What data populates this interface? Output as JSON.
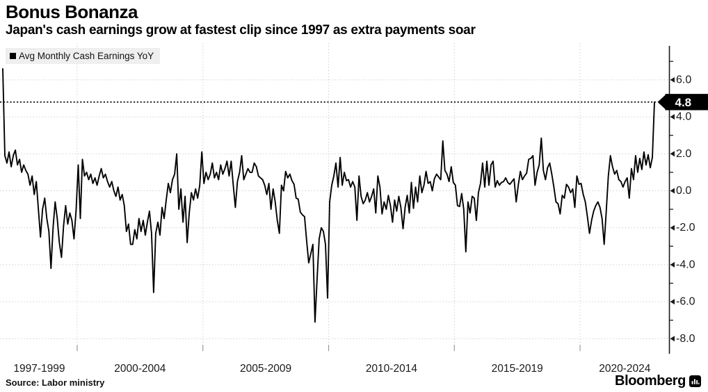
{
  "header": {
    "title": "Bonus Bonanza",
    "subtitle": "Japan's cash earnings grow at fastest clip since 1997 as extra payments soar"
  },
  "legend": {
    "label": "Avg Monthly Cash Earnings YoY"
  },
  "footer": {
    "source": "Source: Labor ministry",
    "brand": "Bloomberg"
  },
  "chart_data": {
    "type": "line",
    "title": "Bonus Bonanza",
    "subtitle": "Japan's cash earnings grow at fastest clip since 1997 as extra payments soar",
    "legend_entries": [
      "Avg Monthly Cash Earnings YoY"
    ],
    "legend_position": "top-left",
    "grid": "dotted",
    "x_start": "1997-01",
    "x_end": "2022-12",
    "frequency": "monthly",
    "x_tick_labels": [
      "1997-1999",
      "2000-2004",
      "2005-2009",
      "2010-2014",
      "2015-2019",
      "2020-2024"
    ],
    "x_gridline_years": [
      2000,
      2005,
      2010,
      2015,
      2020
    ],
    "y_ticks_major": [
      6,
      4,
      2,
      0,
      -2,
      -4,
      -6,
      -8
    ],
    "y_tick_labels": [
      "6.0",
      "4.0",
      "2.0",
      "0.0",
      "-2.0",
      "-4.0",
      "-6.0",
      "-8.0"
    ],
    "y_ticks_minor": [
      7,
      5,
      3,
      1,
      -1,
      -3,
      -5,
      -7
    ],
    "ylim": [
      -8.9,
      7.8
    ],
    "annotation": {
      "value": 4.8,
      "label": "4.8",
      "style": "dotted-threshold-line-with-axis-callout"
    },
    "colors": {
      "line": "#000000",
      "grid": "#cfcfcf",
      "threshold": "#000000",
      "callout_bg": "#000000",
      "callout_text": "#ffffff",
      "legend_bg": "#efefef",
      "axis": "#1a1a1a"
    },
    "series": [
      {
        "name": "Avg Monthly Cash Earnings YoY",
        "unit": "%",
        "values": [
          6.6,
          1.9,
          1.5,
          2.1,
          1.3,
          1.9,
          2.2,
          1.4,
          1.7,
          1.0,
          1.4,
          1.1,
          0.9,
          0.3,
          0.8,
          -0.2,
          0.5,
          -1.0,
          -2.5,
          -1.0,
          -0.4,
          -1.5,
          -2.2,
          -4.2,
          -2.0,
          -0.6,
          -1.5,
          -2.8,
          -3.6,
          -1.9,
          -0.8,
          -1.8,
          -1.2,
          -1.6,
          -2.6,
          -1.0,
          1.4,
          -1.5,
          1.7,
          0.8,
          1.0,
          0.6,
          0.9,
          0.4,
          0.7,
          0.3,
          0.8,
          1.2,
          0.7,
          0.9,
          0.5,
          0.2,
          0.5,
          0.0,
          -0.3,
          0.2,
          -0.5,
          -0.2,
          -0.8,
          -2.2,
          -1.8,
          -2.9,
          -2.9,
          -2.1,
          -2.6,
          -1.5,
          -2.2,
          -1.6,
          -2.4,
          -1.7,
          -1.1,
          -2.3,
          -5.5,
          -2.3,
          -1.7,
          -2.4,
          -0.9,
          -1.5,
          -0.5,
          0.4,
          -0.1,
          0.6,
          0.9,
          2.0,
          -1.0,
          0.1,
          -1.7,
          -0.3,
          -2.8,
          -1.2,
          -0.1,
          -0.5,
          0.1,
          -0.4,
          0.3,
          2.1,
          0.4,
          1.0,
          0.6,
          0.9,
          1.5,
          0.7,
          1.0,
          0.6,
          1.4,
          0.9,
          1.2,
          1.6,
          0.8,
          1.6,
          0.3,
          -0.9,
          0.5,
          1.0,
          1.9,
          0.6,
          0.9,
          1.2,
          1.0,
          1.0,
          1.5,
          1.3,
          0.8,
          0.7,
          0.6,
          0.3,
          -0.2,
          0.4,
          -1.0,
          0.1,
          -0.6,
          -1.6,
          -2.3,
          0.3,
          0.0,
          1.05,
          0.7,
          0.9,
          0.55,
          0.35,
          -0.4,
          -0.45,
          -1.15,
          -1.3,
          -1.4,
          -2.7,
          -3.9,
          -3.4,
          -2.9,
          -7.1,
          -4.8,
          -2.6,
          -2.0,
          -2.2,
          -2.9,
          -5.8,
          -0.6,
          0.3,
          0.8,
          1.5,
          0.2,
          1.8,
          0.3,
          1.0,
          0.55,
          0.6,
          0.2,
          0.5,
          0.2,
          -1.6,
          0.8,
          -0.3,
          -0.7,
          -0.5,
          -0.1,
          -0.6,
          -0.3,
          0.1,
          -1.2,
          0.8,
          0.2,
          -1.25,
          -0.6,
          -1.0,
          -0.25,
          -0.8,
          -1.7,
          -0.5,
          -1.1,
          -0.3,
          -0.9,
          -2.05,
          -0.9,
          -0.25,
          -1.2,
          0.45,
          -0.95,
          0.2,
          -0.6,
          0.8,
          -0.1,
          0.3,
          1.05,
          0.4,
          0.5,
          0.0,
          0.65,
          0.9,
          0.75,
          0.6,
          2.7,
          1.1,
          0.9,
          0.5,
          1.3,
          0.45,
          0.3,
          -0.8,
          -0.85,
          -0.15,
          -1.0,
          -3.3,
          -0.6,
          -1.2,
          -0.3,
          -0.4,
          -1.6,
          -0.1,
          0.4,
          1.5,
          0.2,
          1.6,
          0.3,
          1.4,
          1.6,
          0.2,
          0.55,
          0.3,
          0.45,
          0.5,
          0.7,
          0.45,
          0.35,
          0.5,
          0.65,
          -0.6,
          0.3,
          1.05,
          0.6,
          0.8,
          0.95,
          1.7,
          1.75,
          1.9,
          0.3,
          1.0,
          1.4,
          2.85,
          1.1,
          0.6,
          1.25,
          1.5,
          0.9,
          0.2,
          -0.6,
          -0.7,
          -1.25,
          -0.25,
          -0.4,
          0.35,
          0.2,
          -0.1,
          0.1,
          -0.9,
          0.8,
          0.35,
          0.4,
          -0.2,
          -0.6,
          -1.4,
          -2.3,
          -1.6,
          -1.1,
          -0.8,
          -0.6,
          -0.9,
          -1.5,
          -2.9,
          -1.1,
          0.8,
          1.9,
          1.3,
          0.9,
          1.1,
          0.6,
          0.5,
          0.2,
          0.5,
          0.7,
          -0.4,
          1.2,
          0.6,
          1.9,
          1.0,
          1.75,
          1.15,
          2.1,
          1.4,
          1.95,
          1.25,
          1.8,
          4.8
        ]
      }
    ]
  }
}
